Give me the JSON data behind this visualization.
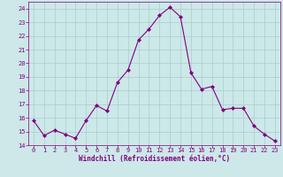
{
  "x": [
    0,
    1,
    2,
    3,
    4,
    5,
    6,
    7,
    8,
    9,
    10,
    11,
    12,
    13,
    14,
    15,
    16,
    17,
    18,
    19,
    20,
    21,
    22,
    23
  ],
  "y": [
    15.8,
    14.7,
    15.1,
    14.8,
    14.5,
    15.8,
    16.9,
    16.5,
    18.6,
    19.5,
    21.7,
    22.5,
    23.5,
    24.1,
    23.4,
    19.3,
    18.1,
    18.3,
    16.6,
    16.7,
    16.7,
    15.4,
    14.8,
    14.3
  ],
  "line_color": "#800080",
  "marker_color": "#800080",
  "bg_color": "#cce8e8",
  "grid_color": "#aacccc",
  "xlabel": "Windchill (Refroidissement éolien,°C)",
  "xlabel_color": "#800080",
  "tick_color": "#800080",
  "ylim": [
    14,
    24.5
  ],
  "xlim": [
    -0.5,
    23.5
  ],
  "yticks": [
    14,
    15,
    16,
    17,
    18,
    19,
    20,
    21,
    22,
    23,
    24
  ],
  "xticks": [
    0,
    1,
    2,
    3,
    4,
    5,
    6,
    7,
    8,
    9,
    10,
    11,
    12,
    13,
    14,
    15,
    16,
    17,
    18,
    19,
    20,
    21,
    22,
    23
  ],
  "tick_fontsize": 5.0,
  "xlabel_fontsize": 5.5,
  "linewidth": 0.8,
  "markersize": 2.0
}
